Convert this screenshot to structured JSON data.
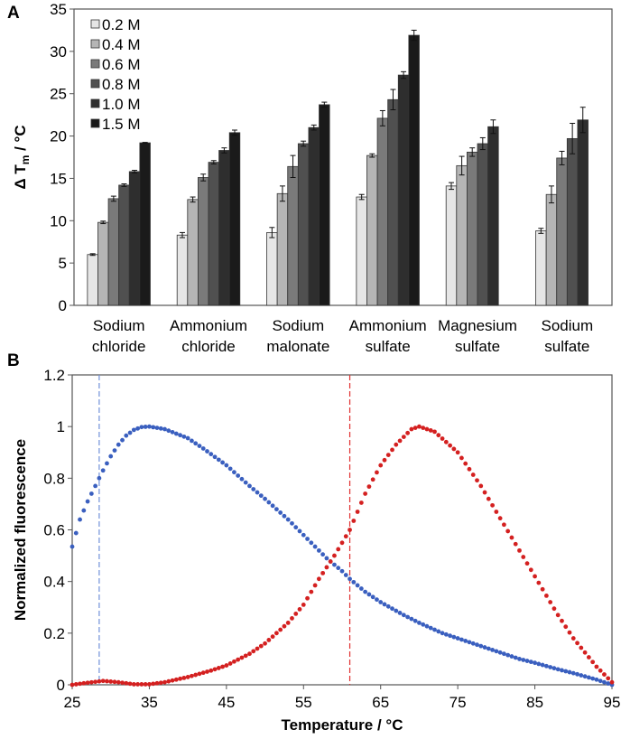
{
  "chart_data": [
    {
      "panel": "A",
      "type": "bar",
      "title": "",
      "xlabel": "",
      "ylabel": "Δ T",
      "ylabel_sub": "m",
      "ylabel_unit": " / °C",
      "ylim": [
        0,
        35
      ],
      "yticks": [
        0,
        5,
        10,
        15,
        20,
        25,
        30,
        35
      ],
      "legend_placement": "top-left",
      "categories": [
        [
          "Sodium",
          "chloride"
        ],
        [
          "Ammonium",
          "chloride"
        ],
        [
          "Sodium",
          "malonate"
        ],
        [
          "Ammonium",
          "sulfate"
        ],
        [
          "Magnesium",
          "sulfate"
        ],
        [
          "Sodium",
          "sulfate"
        ]
      ],
      "series": [
        {
          "name": "0.2 M",
          "color": "#e6e6e6",
          "values": [
            6.0,
            8.3,
            8.6,
            12.8,
            14.1,
            8.8
          ],
          "errors": [
            0.1,
            0.3,
            0.6,
            0.3,
            0.4,
            0.3
          ]
        },
        {
          "name": "0.4 M",
          "color": "#b5b5b5",
          "values": [
            9.8,
            12.5,
            13.2,
            17.7,
            16.5,
            13.1
          ],
          "errors": [
            0.15,
            0.3,
            0.9,
            0.2,
            1.1,
            1.0
          ]
        },
        {
          "name": "0.6 M",
          "color": "#7a7a7a",
          "values": [
            12.6,
            15.1,
            16.4,
            22.1,
            18.1,
            17.4
          ],
          "errors": [
            0.3,
            0.4,
            1.3,
            0.9,
            0.5,
            0.8
          ]
        },
        {
          "name": "0.8 M",
          "color": "#505050",
          "values": [
            14.2,
            16.9,
            19.1,
            24.3,
            19.1,
            19.7
          ],
          "errors": [
            0.15,
            0.2,
            0.3,
            1.2,
            0.7,
            1.8
          ]
        },
        {
          "name": "1.0 M",
          "color": "#2e2e2e",
          "values": [
            15.8,
            18.3,
            21.0,
            27.2,
            21.1,
            21.9
          ],
          "errors": [
            0.15,
            0.3,
            0.3,
            0.4,
            0.8,
            1.5
          ]
        },
        {
          "name": "1.5 M",
          "color": "#1a1a1a",
          "values": [
            19.2,
            20.4,
            23.7,
            31.9,
            null,
            null
          ],
          "errors": [
            0.05,
            0.3,
            0.3,
            0.6,
            null,
            null
          ]
        }
      ]
    },
    {
      "panel": "B",
      "type": "scatter",
      "title": "",
      "xlabel": "Temperature / °C",
      "ylabel": "Normalized fluorescence",
      "xlim": [
        25,
        95
      ],
      "ylim": [
        0,
        1.2
      ],
      "xticks": [
        25,
        35,
        45,
        55,
        65,
        75,
        85,
        95
      ],
      "yticks": [
        "0",
        "0.2",
        "0.4",
        "0.6",
        "0.8",
        "1",
        "1.2"
      ],
      "series": [
        {
          "name": "blue",
          "color": "#3a5fbf",
          "x": [
            25,
            26,
            27,
            28,
            29,
            30,
            31,
            32,
            33,
            34,
            35,
            37,
            40,
            42,
            45,
            48,
            50,
            53,
            55,
            58,
            60,
            61,
            63,
            65,
            68,
            70,
            73,
            75,
            78,
            80,
            83,
            85,
            88,
            90,
            93,
            95
          ],
          "y": [
            0.535,
            0.64,
            0.71,
            0.77,
            0.83,
            0.885,
            0.93,
            0.965,
            0.987,
            0.998,
            1.0,
            0.99,
            0.955,
            0.915,
            0.85,
            0.77,
            0.72,
            0.64,
            0.58,
            0.49,
            0.44,
            0.41,
            0.36,
            0.32,
            0.27,
            0.24,
            0.2,
            0.18,
            0.15,
            0.13,
            0.1,
            0.085,
            0.06,
            0.045,
            0.02,
            0.0
          ]
        },
        {
          "name": "red",
          "color": "#d42020",
          "x": [
            25,
            27,
            29,
            31,
            33,
            35,
            37,
            40,
            43,
            45,
            48,
            50,
            53,
            55,
            57,
            59,
            61,
            63,
            65,
            67,
            69,
            70,
            72,
            75,
            78,
            80,
            83,
            85,
            88,
            90,
            93,
            95
          ],
          "y": [
            0.0,
            0.008,
            0.015,
            0.01,
            0.002,
            0.002,
            0.01,
            0.03,
            0.055,
            0.075,
            0.12,
            0.16,
            0.24,
            0.31,
            0.41,
            0.5,
            0.6,
            0.74,
            0.85,
            0.93,
            0.99,
            1.0,
            0.98,
            0.9,
            0.77,
            0.67,
            0.52,
            0.42,
            0.27,
            0.18,
            0.07,
            0.01
          ]
        }
      ],
      "reference_lines": [
        {
          "x": 28.5,
          "color": "#7090d8"
        },
        {
          "x": 61,
          "color": "#e03030"
        }
      ]
    }
  ]
}
